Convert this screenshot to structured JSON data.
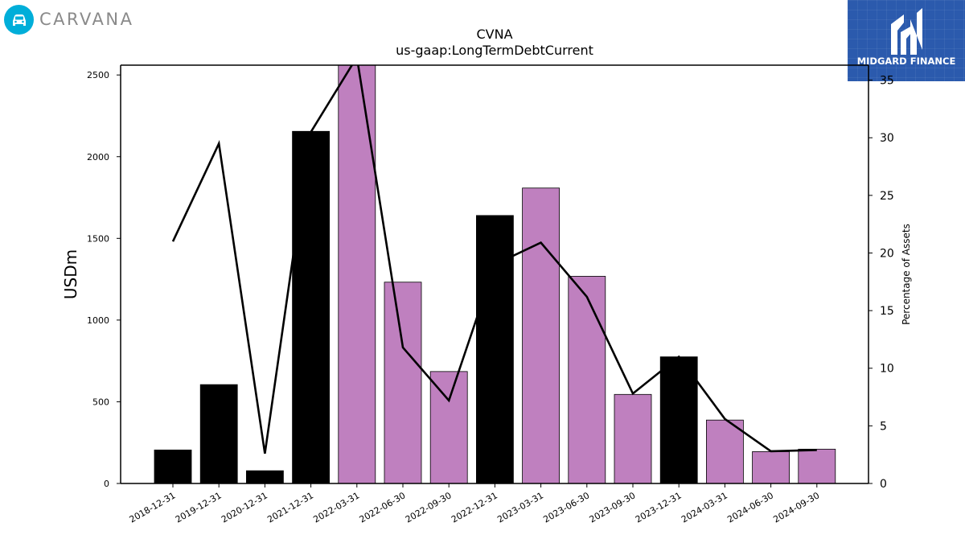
{
  "brand": {
    "left_logo_text": "CARVANA",
    "right_logo_text": "MIDGARD FINANCE"
  },
  "chart_data": {
    "type": "bar",
    "title": "CVNA",
    "subtitle": "us-gaap:LongTermDebtCurrent",
    "ylabel": "USDm",
    "y2label": "Percentage of Assets",
    "categories": [
      "2018-12-31",
      "2019-12-31",
      "2020-12-31",
      "2021-12-31",
      "2022-03-31",
      "2022-06-30",
      "2022-09-30",
      "2022-12-31",
      "2023-03-31",
      "2023-06-30",
      "2023-09-30",
      "2023-12-31",
      "2024-03-31",
      "2024-06-30",
      "2024-09-30"
    ],
    "series": [
      {
        "type": "bar",
        "values": [
          205,
          605,
          78,
          2155,
          2600,
          1232,
          685,
          1640,
          1808,
          1268,
          545,
          775,
          388,
          195,
          210
        ],
        "colors": [
          "#000000",
          "#000000",
          "#000000",
          "#000000",
          "#bf80bf",
          "#bf80bf",
          "#bf80bf",
          "#000000",
          "#bf80bf",
          "#bf80bf",
          "#bf80bf",
          "#000000",
          "#bf80bf",
          "#bf80bf",
          "#bf80bf"
        ]
      },
      {
        "type": "line",
        "axis": "right",
        "values": [
          21.0,
          29.5,
          2.6,
          30.5,
          37.0,
          11.8,
          7.2,
          19.0,
          20.9,
          16.2,
          7.8,
          11.0,
          5.6,
          2.8,
          2.9
        ],
        "color": "#000000"
      }
    ],
    "ylim": [
      0,
      2560
    ],
    "y_ticks": [
      0,
      500,
      1000,
      1500,
      2000,
      2500
    ],
    "y2lim": [
      0,
      36.3
    ],
    "y2_ticks": [
      0,
      5,
      10,
      15,
      20,
      25,
      30,
      35
    ],
    "grid": false,
    "legend": "none"
  }
}
